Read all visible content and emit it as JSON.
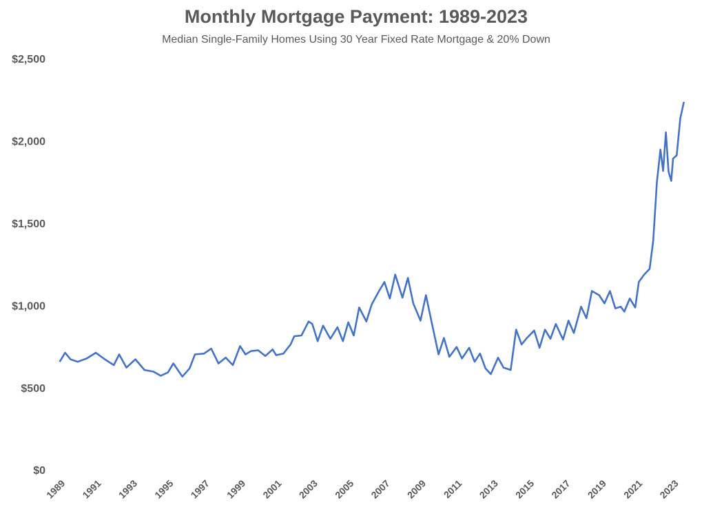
{
  "chart_data": {
    "type": "line",
    "title": "Monthly Mortgage Payment: 1989-2023",
    "subtitle": "Median Single-Family Homes Using 30 Year Fixed Rate Mortgage & 20% Down",
    "x": [
      1989.0,
      1989.3,
      1989.6,
      1990.0,
      1990.5,
      1991.0,
      1991.5,
      1992.0,
      1992.3,
      1992.7,
      1993.2,
      1993.7,
      1994.2,
      1994.6,
      1995.0,
      1995.3,
      1995.8,
      1996.2,
      1996.5,
      1997.0,
      1997.4,
      1997.8,
      1998.2,
      1998.6,
      1999.0,
      1999.3,
      1999.6,
      2000.0,
      2000.4,
      2000.8,
      2001.0,
      2001.4,
      2001.8,
      2002.0,
      2002.4,
      2002.8,
      2003.0,
      2003.3,
      2003.6,
      2004.0,
      2004.4,
      2004.7,
      2005.0,
      2005.3,
      2005.6,
      2006.0,
      2006.3,
      2006.7,
      2007.0,
      2007.3,
      2007.6,
      2008.0,
      2008.3,
      2008.6,
      2009.0,
      2009.3,
      2009.6,
      2010.0,
      2010.3,
      2010.6,
      2011.0,
      2011.3,
      2011.7,
      2012.0,
      2012.3,
      2012.6,
      2012.9,
      2013.3,
      2013.6,
      2014.0,
      2014.3,
      2014.6,
      2014.9,
      2015.3,
      2015.6,
      2015.9,
      2016.2,
      2016.5,
      2016.9,
      2017.2,
      2017.5,
      2017.9,
      2018.2,
      2018.5,
      2018.9,
      2019.2,
      2019.5,
      2019.8,
      2020.1,
      2020.3,
      2020.6,
      2020.9,
      2021.1,
      2021.4,
      2021.7,
      2021.9,
      2022.1,
      2022.3,
      2022.45,
      2022.6,
      2022.75,
      2022.9,
      2023.0,
      2023.2,
      2023.4,
      2023.6
    ],
    "values": [
      665,
      720,
      680,
      665,
      685,
      720,
      680,
      645,
      710,
      630,
      680,
      615,
      605,
      580,
      600,
      655,
      575,
      625,
      710,
      715,
      745,
      655,
      690,
      645,
      760,
      710,
      730,
      735,
      700,
      740,
      705,
      715,
      770,
      820,
      825,
      910,
      895,
      790,
      885,
      805,
      875,
      790,
      905,
      825,
      995,
      910,
      1015,
      1095,
      1150,
      1050,
      1195,
      1055,
      1175,
      1020,
      915,
      1070,
      915,
      710,
      810,
      695,
      755,
      685,
      750,
      665,
      715,
      625,
      590,
      690,
      630,
      615,
      860,
      770,
      810,
      855,
      750,
      860,
      805,
      895,
      800,
      915,
      840,
      1000,
      930,
      1095,
      1070,
      1020,
      1095,
      990,
      1000,
      970,
      1050,
      995,
      1150,
      1195,
      1230,
      1400,
      1755,
      1955,
      1825,
      2060,
      1820,
      1765,
      1900,
      1920,
      2145,
      2245
    ],
    "color": "#4472c4",
    "xlim": [
      1988.9,
      2023.8
    ],
    "xticks": [
      1989,
      1991,
      1993,
      1995,
      1997,
      1999,
      2001,
      2003,
      2005,
      2007,
      2009,
      2011,
      2013,
      2015,
      2017,
      2019,
      2021,
      2023
    ],
    "ylim": [
      0,
      2500
    ],
    "yticks": [
      {
        "value": 0,
        "label": "$0"
      },
      {
        "value": 500,
        "label": "$500"
      },
      {
        "value": 1000,
        "label": "$1,000"
      },
      {
        "value": 1500,
        "label": "$1,500"
      },
      {
        "value": 2000,
        "label": "$2,000"
      },
      {
        "value": 2500,
        "label": "$2,500"
      }
    ]
  }
}
